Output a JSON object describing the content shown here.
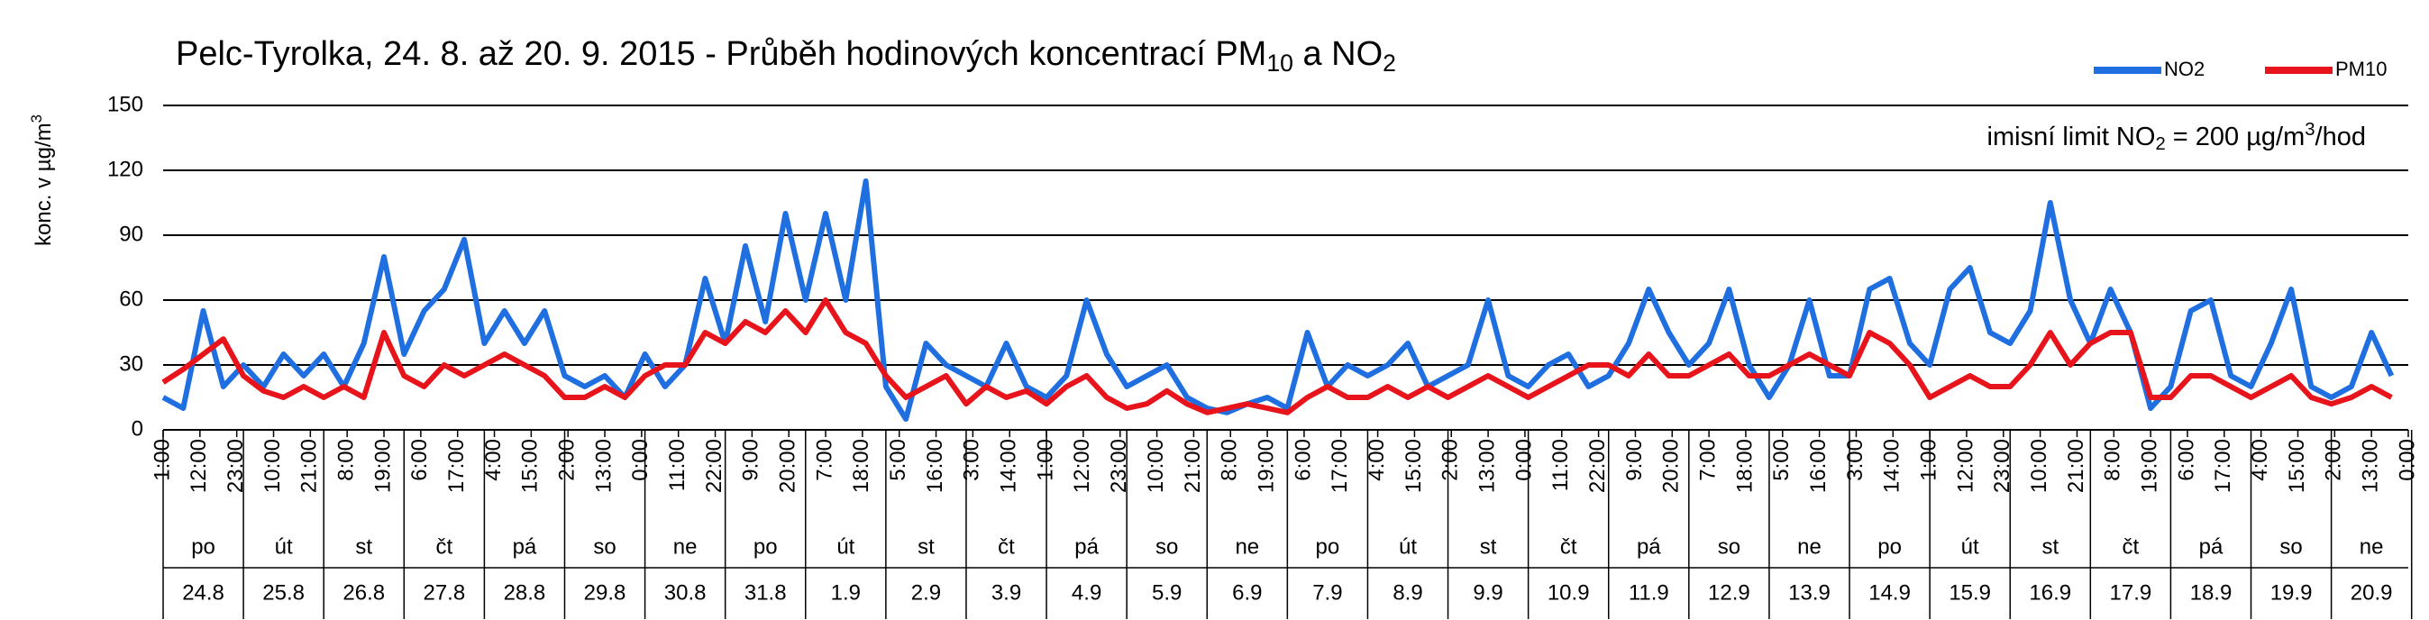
{
  "chart_data": {
    "type": "line",
    "title": [
      "Pelc-Tyrolka, 24. 8. až 20. 9. 2015 - Průběh hodinových koncentrací PM",
      "10",
      " a NO",
      "2"
    ],
    "y_label": [
      "konc. v µg/m",
      "3"
    ],
    "annotation": [
      "imisní limit NO",
      "2",
      " = 200 µg/m",
      "3",
      "/hod"
    ],
    "legend": "upper right",
    "grid": true,
    "ylim": [
      0,
      150
    ],
    "yticks": [
      0,
      30,
      60,
      90,
      120,
      150
    ],
    "xlim": [
      1,
      672
    ],
    "xticks": [
      {
        "value": 1,
        "label": "1:00"
      },
      {
        "value": 12,
        "label": "12:00"
      },
      {
        "value": 23,
        "label": "23:00"
      },
      {
        "value": 34,
        "label": "10:00"
      },
      {
        "value": 45,
        "label": "21:00"
      },
      {
        "value": 56,
        "label": "8:00"
      },
      {
        "value": 67,
        "label": "19:00"
      },
      {
        "value": 78,
        "label": "6:00"
      },
      {
        "value": 89,
        "label": "17:00"
      },
      {
        "value": 100,
        "label": "4:00"
      },
      {
        "value": 111,
        "label": "15:00"
      },
      {
        "value": 122,
        "label": "2:00"
      },
      {
        "value": 133,
        "label": "13:00"
      },
      {
        "value": 144,
        "label": "0:00"
      },
      {
        "value": 155,
        "label": "11:00"
      },
      {
        "value": 166,
        "label": "22:00"
      },
      {
        "value": 177,
        "label": "9:00"
      },
      {
        "value": 188,
        "label": "20:00"
      },
      {
        "value": 199,
        "label": "7:00"
      },
      {
        "value": 210,
        "label": "18:00"
      },
      {
        "value": 221,
        "label": "5:00"
      },
      {
        "value": 232,
        "label": "16:00"
      },
      {
        "value": 243,
        "label": "3:00"
      },
      {
        "value": 254,
        "label": "14:00"
      },
      {
        "value": 265,
        "label": "1:00"
      },
      {
        "value": 276,
        "label": "12:00"
      },
      {
        "value": 287,
        "label": "23:00"
      },
      {
        "value": 298,
        "label": "10:00"
      },
      {
        "value": 309,
        "label": "21:00"
      },
      {
        "value": 320,
        "label": "8:00"
      },
      {
        "value": 331,
        "label": "19:00"
      },
      {
        "value": 342,
        "label": "6:00"
      },
      {
        "value": 353,
        "label": "17:00"
      },
      {
        "value": 364,
        "label": "4:00"
      },
      {
        "value": 375,
        "label": "15:00"
      },
      {
        "value": 386,
        "label": "2:00"
      },
      {
        "value": 397,
        "label": "13:00"
      },
      {
        "value": 408,
        "label": "0:00"
      },
      {
        "value": 419,
        "label": "11:00"
      },
      {
        "value": 430,
        "label": "22:00"
      },
      {
        "value": 441,
        "label": "9:00"
      },
      {
        "value": 452,
        "label": "20:00"
      },
      {
        "value": 463,
        "label": "7:00"
      },
      {
        "value": 474,
        "label": "18:00"
      },
      {
        "value": 485,
        "label": "5:00"
      },
      {
        "value": 496,
        "label": "16:00"
      },
      {
        "value": 507,
        "label": "3:00"
      },
      {
        "value": 518,
        "label": "14:00"
      },
      {
        "value": 529,
        "label": "1:00"
      },
      {
        "value": 540,
        "label": "12:00"
      },
      {
        "value": 551,
        "label": "23:00"
      },
      {
        "value": 562,
        "label": "10:00"
      },
      {
        "value": 573,
        "label": "21:00"
      },
      {
        "value": 584,
        "label": "8:00"
      },
      {
        "value": 595,
        "label": "19:00"
      },
      {
        "value": 606,
        "label": "6:00"
      },
      {
        "value": 617,
        "label": "17:00"
      },
      {
        "value": 628,
        "label": "4:00"
      },
      {
        "value": 639,
        "label": "15:00"
      },
      {
        "value": 650,
        "label": "2:00"
      },
      {
        "value": 661,
        "label": "13:00"
      },
      {
        "value": 672,
        "label": "0:00"
      }
    ],
    "weekdays": [
      "po",
      "út",
      "st",
      "čt",
      "pá",
      "so",
      "ne",
      "po",
      "út",
      "st",
      "čt",
      "pá",
      "so",
      "ne",
      "po",
      "út",
      "st",
      "čt",
      "pá",
      "so",
      "ne",
      "po",
      "út",
      "st",
      "čt",
      "pá",
      "so",
      "ne"
    ],
    "dates": [
      "24.8",
      "25.8",
      "26.8",
      "27.8",
      "28.8",
      "29.8",
      "30.8",
      "31.8",
      "1.9",
      "2.9",
      "3.9",
      "4.9",
      "5.9",
      "6.9",
      "7.9",
      "8.9",
      "9.9",
      "10.9",
      "11.9",
      "12.9",
      "13.9",
      "14.9",
      "15.9",
      "16.9",
      "17.9",
      "18.9",
      "19.9",
      "20.9"
    ],
    "x": [
      1,
      7,
      13,
      19,
      25,
      31,
      37,
      43,
      49,
      55,
      61,
      67,
      73,
      79,
      85,
      91,
      97,
      103,
      109,
      115,
      121,
      127,
      133,
      139,
      145,
      151,
      157,
      163,
      169,
      175,
      181,
      187,
      193,
      199,
      205,
      211,
      217,
      223,
      229,
      235,
      241,
      247,
      253,
      259,
      265,
      271,
      277,
      283,
      289,
      295,
      301,
      307,
      313,
      319,
      325,
      331,
      337,
      343,
      349,
      355,
      361,
      367,
      373,
      379,
      385,
      391,
      397,
      403,
      409,
      415,
      421,
      427,
      433,
      439,
      445,
      451,
      457,
      463,
      469,
      475,
      481,
      487,
      493,
      499,
      505,
      511,
      517,
      523,
      529,
      535,
      541,
      547,
      553,
      559,
      565,
      571,
      577,
      583,
      589,
      595,
      601,
      607,
      613,
      619,
      625,
      631,
      637,
      643,
      649,
      655,
      661,
      667
    ],
    "series": [
      {
        "name": "NO2",
        "color": "#1f6fe0",
        "values": [
          15,
          10,
          55,
          20,
          30,
          20,
          35,
          25,
          35,
          20,
          40,
          80,
          35,
          55,
          65,
          88,
          40,
          55,
          40,
          55,
          25,
          20,
          25,
          15,
          35,
          20,
          30,
          70,
          40,
          85,
          50,
          100,
          60,
          100,
          60,
          115,
          20,
          5,
          40,
          30,
          25,
          20,
          40,
          20,
          15,
          25,
          60,
          35,
          20,
          25,
          30,
          15,
          10,
          8,
          12,
          15,
          10,
          45,
          20,
          30,
          25,
          30,
          40,
          20,
          25,
          30,
          60,
          25,
          20,
          30,
          35,
          20,
          25,
          40,
          65,
          45,
          30,
          40,
          65,
          30,
          15,
          30,
          60,
          25,
          25,
          65,
          70,
          40,
          30,
          65,
          75,
          45,
          40,
          55,
          105,
          60,
          40,
          65,
          45,
          10,
          20,
          55,
          60,
          25,
          20,
          40,
          65,
          20,
          15,
          20,
          45,
          25
        ]
      },
      {
        "name": "PM10",
        "color": "#e8141b",
        "values": [
          22,
          28,
          35,
          42,
          25,
          18,
          15,
          20,
          15,
          20,
          15,
          45,
          25,
          20,
          30,
          25,
          30,
          35,
          30,
          25,
          15,
          15,
          20,
          15,
          25,
          30,
          30,
          45,
          40,
          50,
          45,
          55,
          45,
          60,
          45,
          40,
          25,
          15,
          20,
          25,
          12,
          20,
          15,
          18,
          12,
          20,
          25,
          15,
          10,
          12,
          18,
          12,
          8,
          10,
          12,
          10,
          8,
          15,
          20,
          15,
          15,
          20,
          15,
          20,
          15,
          20,
          25,
          20,
          15,
          20,
          25,
          30,
          30,
          25,
          35,
          25,
          25,
          30,
          35,
          25,
          25,
          30,
          35,
          30,
          25,
          45,
          40,
          30,
          15,
          20,
          25,
          20,
          20,
          30,
          45,
          30,
          40,
          45,
          45,
          15,
          15,
          25,
          25,
          20,
          15,
          20,
          25,
          15,
          12,
          15,
          20,
          15
        ]
      }
    ]
  }
}
